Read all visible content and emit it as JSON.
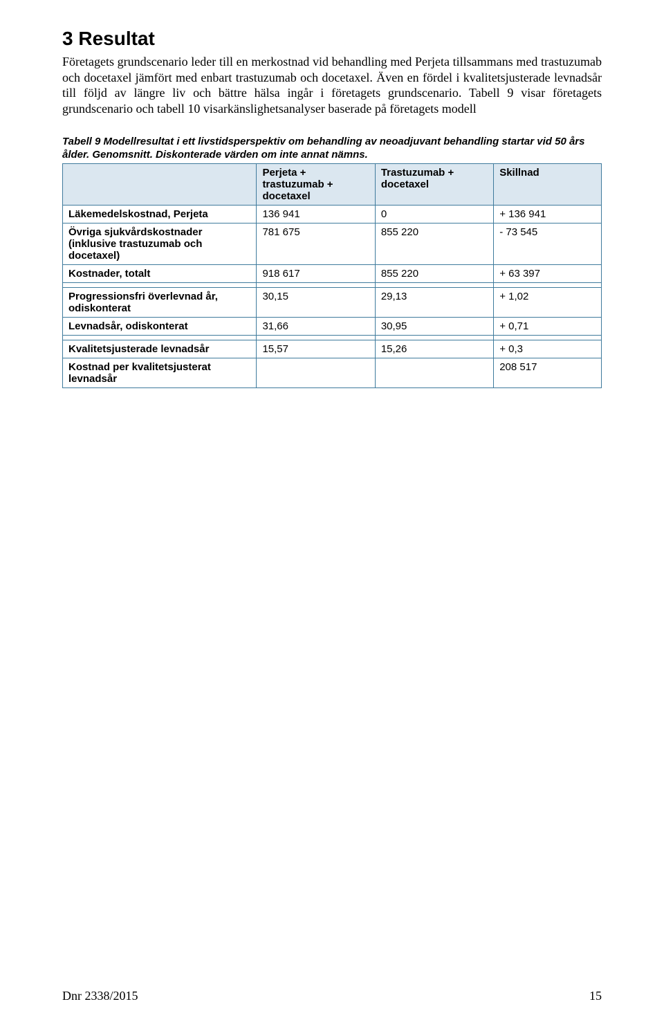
{
  "heading": "3  Resultat",
  "paragraph": "Företagets grundscenario leder till en merkostnad vid behandling med Perjeta tillsammans med trastuzumab och docetaxel jämfört med enbart trastuzumab och docetaxel. Även en fördel i kvalitetsjusterade levnadsår till följd av längre liv och bättre hälsa ingår i företagets grundscenario. Tabell 9 visar företagets grundscenario och tabell 10 visarkänslighetsanalyser baserade på företagets modell",
  "table_caption": "Tabell 9 Modellresultat i ett livstidsperspektiv om behandling av neoadjuvant behandling startar vid 50 års ålder. Genomsnitt. Diskonterade värden om inte annat nämns.",
  "headers": {
    "col1": "",
    "col2": "Perjeta + trastuzumab + docetaxel",
    "col3": "Trastuzumab + docetaxel",
    "col4": "Skillnad"
  },
  "rows": {
    "r1": {
      "label": "Läkemedelskostnad, Perjeta",
      "c2": "136 941",
      "c3": "0",
      "c4": "+ 136 941"
    },
    "r2": {
      "label": "Övriga sjukvårdskostnader (inklusive trastuzumab och docetaxel)",
      "c2": "781 675",
      "c3": "855 220",
      "c4": "- 73 545"
    },
    "r3": {
      "label": "Kostnader, totalt",
      "c2": "918 617",
      "c3": "855 220",
      "c4": "+ 63 397"
    },
    "r4": {
      "label": "Progressionsfri överlevnad år, odiskonterat",
      "c2": "30,15",
      "c3": "29,13",
      "c4": "+ 1,02"
    },
    "r5": {
      "label": "Levnadsår, odiskonterat",
      "c2": "31,66",
      "c3": "30,95",
      "c4": "+ 0,71"
    },
    "r6": {
      "label": "Kvalitetsjusterade levnadsår",
      "c2": "15,57",
      "c3": "15,26",
      "c4": "+ 0,3"
    },
    "r7": {
      "label": "Kostnad per kvalitetsjusterat levnadsår",
      "c2": "",
      "c3": "",
      "c4": "208 517"
    }
  },
  "footer": {
    "dnr": "Dnr 2338/2015",
    "page": "15"
  },
  "colors": {
    "header_bg": "#dbe7f0",
    "border": "#3e7a9c",
    "text": "#000000",
    "background": "#ffffff"
  }
}
